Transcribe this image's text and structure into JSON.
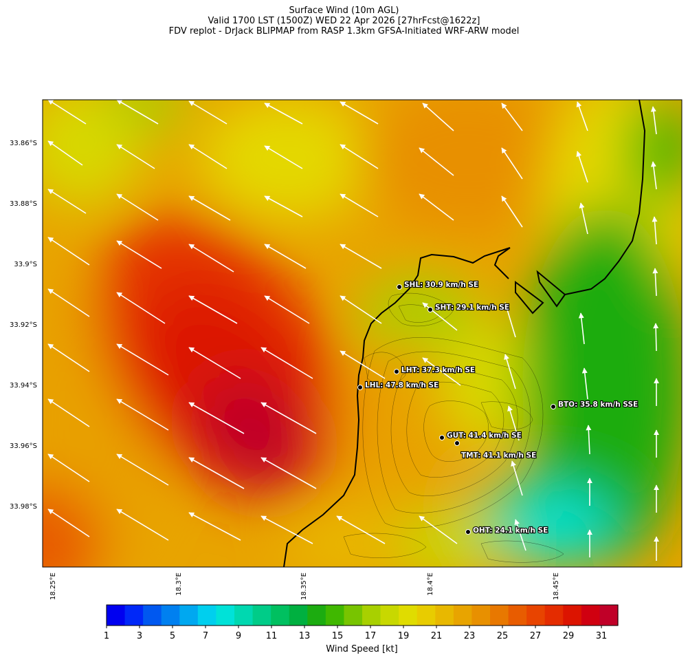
{
  "title": {
    "line1": "Surface Wind (10m AGL)",
    "line2": "Valid 1700 LST (1500Z) WED 22 Apr 2026 [27hrFcst@1622z]",
    "line3": "FDV replot - DrJack BLIPMAP from RASP 1.3km GFSA-Initiated WRF-ARW model"
  },
  "map": {
    "lat_ticks": [
      "33.86°S",
      "33.88°S",
      "33.9°S",
      "33.92°S",
      "33.94°S",
      "33.96°S",
      "33.98°S"
    ],
    "lon_ticks": [
      "18.25°E",
      "18.3°E",
      "18.35°E",
      "18.4°E",
      "18.45°E"
    ],
    "stations": [
      {
        "id": "SHL",
        "label": "SHL: 30.9 km/h SE"
      },
      {
        "id": "SHT",
        "label": "SHT: 29.1 km/h SE"
      },
      {
        "id": "LHT",
        "label": "LHT: 37.3 km/h SE"
      },
      {
        "id": "LHL",
        "label": "LHL: 47.8 km/h SE"
      },
      {
        "id": "BTO",
        "label": "BTO: 35.8 km/h SSE"
      },
      {
        "id": "GUT",
        "label": "GUT: 41.4 km/h SE"
      },
      {
        "id": "TMT",
        "label": "TMT: 41.1 km/h SE"
      },
      {
        "id": "OHT",
        "label": "OHT: 24.1 km/h SE"
      }
    ],
    "wind_direction": "SE (arrows point NW offshore, N over the east)"
  },
  "colorbar": {
    "label": "Wind Speed [kt]",
    "ticks": [
      "1",
      "3",
      "5",
      "7",
      "9",
      "11",
      "13",
      "15",
      "17",
      "19",
      "21",
      "23",
      "25",
      "27",
      "29",
      "31"
    ],
    "colors": [
      "#0000f0",
      "#0028f8",
      "#0058f0",
      "#0080f0",
      "#00a8f0",
      "#00cfee",
      "#00e2d8",
      "#00d8b0",
      "#00cc88",
      "#00c060",
      "#00b040",
      "#1cac10",
      "#40b800",
      "#78c400",
      "#a8d000",
      "#c8d800",
      "#e0dc00",
      "#e8cc00",
      "#e8b800",
      "#e8a400",
      "#e89000",
      "#e87800",
      "#e85c00",
      "#e84400",
      "#e42c00",
      "#dc1400",
      "#d00010",
      "#c00028"
    ]
  }
}
